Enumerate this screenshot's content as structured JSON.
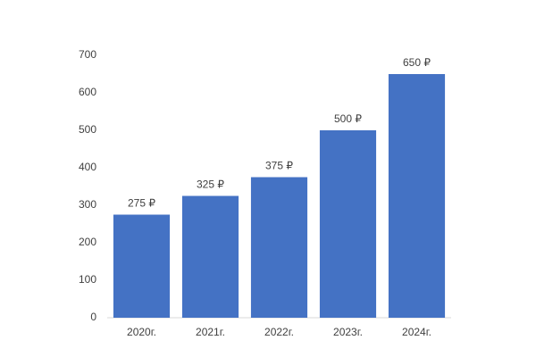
{
  "chart_data": {
    "type": "bar",
    "categories": [
      "2020г.",
      "2021г.",
      "2022г.",
      "2023г.",
      "2024г."
    ],
    "values": [
      275,
      325,
      375,
      500,
      650
    ],
    "value_labels": [
      "275 ₽",
      "325 ₽",
      "375 ₽",
      "500 ₽",
      "650 ₽"
    ],
    "color": "#4472c4",
    "ylim": [
      0,
      700
    ],
    "yticks": [
      0,
      100,
      200,
      300,
      400,
      500,
      600,
      700
    ],
    "grid": false
  }
}
